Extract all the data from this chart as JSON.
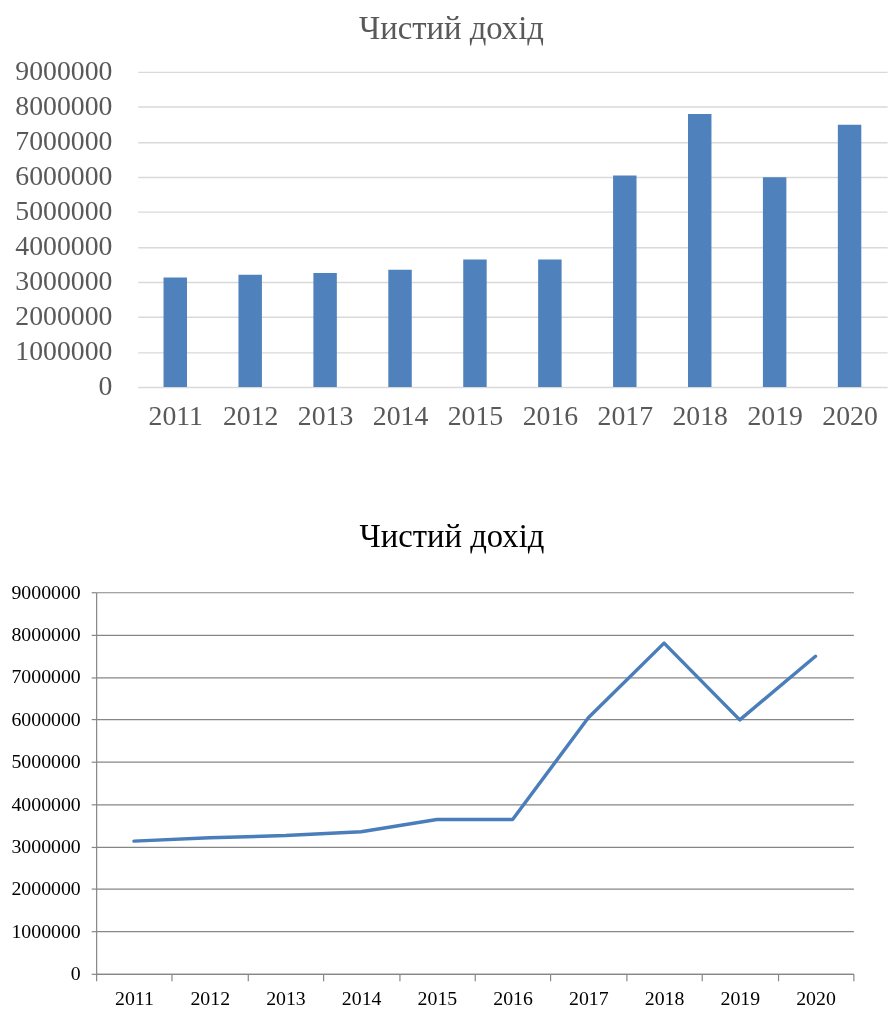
{
  "chart_data": [
    {
      "type": "bar",
      "title": "Чистий дохід",
      "categories": [
        "2011",
        "2012",
        "2013",
        "2014",
        "2015",
        "2016",
        "2017",
        "2018",
        "2019",
        "2020"
      ],
      "values": [
        3130000,
        3210000,
        3260000,
        3350000,
        3640000,
        3640000,
        6040000,
        7800000,
        5990000,
        7490000
      ],
      "color": "#4f81bd",
      "ylim": [
        0,
        9000000
      ],
      "yticks": [
        0,
        1000000,
        2000000,
        3000000,
        4000000,
        5000000,
        6000000,
        7000000,
        8000000,
        9000000
      ],
      "grid": "y"
    },
    {
      "type": "line",
      "title": "Чистий дохід",
      "categories": [
        "2011",
        "2012",
        "2013",
        "2014",
        "2015",
        "2016",
        "2017",
        "2018",
        "2019",
        "2020"
      ],
      "values": [
        3130000,
        3210000,
        3260000,
        3350000,
        3640000,
        3640000,
        6040000,
        7800000,
        5990000,
        7490000
      ],
      "color": "#4a7ebb",
      "ylim": [
        0,
        9000000
      ],
      "yticks": [
        0,
        1000000,
        2000000,
        3000000,
        4000000,
        5000000,
        6000000,
        7000000,
        8000000,
        9000000
      ],
      "grid": "y"
    }
  ]
}
